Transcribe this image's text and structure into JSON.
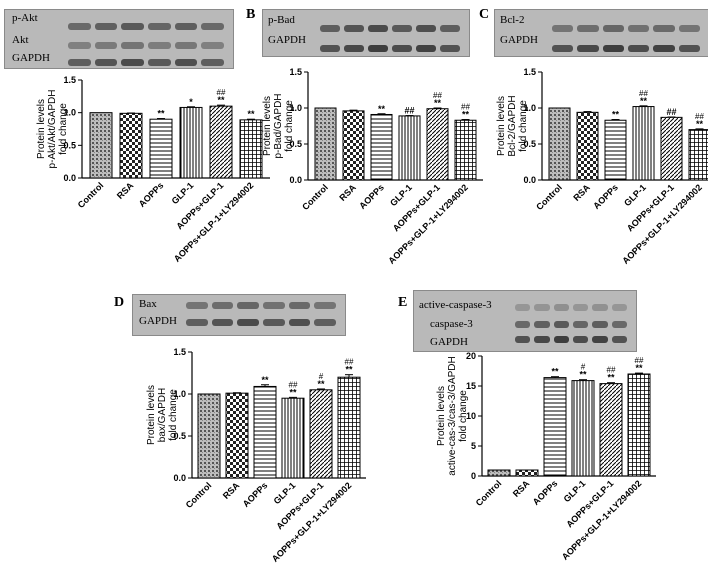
{
  "panels": [
    {
      "letter": "A",
      "blot_labels": [
        "p-Akt",
        "Akt",
        "GAPDH"
      ],
      "chart_data": {
        "type": "bar",
        "categories": [
          "Control",
          "RSA",
          "AOPPs",
          "GLP-1",
          "AOPPs+GLP-1",
          "AOPPs+GLP-1+LY294002"
        ],
        "values": [
          1.0,
          0.99,
          0.9,
          1.08,
          1.1,
          0.89
        ],
        "errors": [
          0.0,
          0.005,
          0.01,
          0.01,
          0.015,
          0.01
        ],
        "ylabel": [
          "Protein levels",
          "p-Akt/Akt/GAPDH",
          "fold change"
        ],
        "ylim": [
          0,
          1.5
        ],
        "yticks": [
          "0.0",
          "0.5",
          "1.0",
          "1.5"
        ],
        "annotations": [
          [
            "",
            ""
          ],
          [
            "",
            ""
          ],
          [
            "",
            "**"
          ],
          [
            "",
            "*"
          ],
          [
            "##",
            "**"
          ],
          [
            "",
            "**"
          ]
        ]
      }
    },
    {
      "letter": "B",
      "blot_labels": [
        "p-Bad",
        "GAPDH"
      ],
      "chart_data": {
        "type": "bar",
        "categories": [
          "Control",
          "RSA",
          "AOPPs",
          "GLP-1",
          "AOPPs+GLP-1",
          "AOPPs+GLP-1+LY294002"
        ],
        "values": [
          1.0,
          0.96,
          0.91,
          0.89,
          0.99,
          0.83
        ],
        "errors": [
          0.0,
          0.01,
          0.01,
          0.005,
          0.01,
          0.01
        ],
        "ylabel": [
          "Protein levels",
          "p-Bad/GAPDH",
          "fold change"
        ],
        "ylim": [
          0,
          1.5
        ],
        "yticks": [
          "0.0",
          "0.5",
          "1.0",
          "1.5"
        ],
        "annotations": [
          [
            "",
            ""
          ],
          [
            "",
            ""
          ],
          [
            "",
            "**"
          ],
          [
            "",
            "##"
          ],
          [
            "##",
            "**"
          ],
          [
            "##",
            "**"
          ]
        ]
      }
    },
    {
      "letter": "C",
      "blot_labels": [
        "Bcl-2",
        "GAPDH"
      ],
      "chart_data": {
        "type": "bar",
        "categories": [
          "Control",
          "RSA",
          "AOPPs",
          "GLP-1",
          "AOPPs+GLP-1",
          "AOPPs+GLP-1+LY294002"
        ],
        "values": [
          1.0,
          0.94,
          0.83,
          1.02,
          0.87,
          0.7
        ],
        "errors": [
          0.0,
          0.01,
          0.01,
          0.01,
          0.005,
          0.01
        ],
        "ylabel": [
          "Protein levels",
          "Bcl-2/GAPDH",
          "fold change"
        ],
        "ylim": [
          0,
          1.5
        ],
        "yticks": [
          "0.0",
          "0.5",
          "1.0",
          "1.5"
        ],
        "annotations": [
          [
            "",
            ""
          ],
          [
            "",
            ""
          ],
          [
            "",
            "**"
          ],
          [
            "##",
            "**"
          ],
          [
            "",
            "##"
          ],
          [
            "##",
            "**"
          ]
        ]
      }
    },
    {
      "letter": "D",
      "blot_labels": [
        "Bax",
        "GAPDH"
      ],
      "chart_data": {
        "type": "bar",
        "categories": [
          "Control",
          "RSA",
          "AOPPs",
          "GLP-1",
          "AOPPs+GLP-1",
          "AOPPs+GLP-1+LY294002"
        ],
        "values": [
          1.0,
          1.01,
          1.09,
          0.95,
          1.05,
          1.2
        ],
        "errors": [
          0.0,
          0.005,
          0.02,
          0.01,
          0.01,
          0.03
        ],
        "ylabel": [
          "Protein levels",
          "bax/GAPDH",
          "fold change"
        ],
        "ylim": [
          0,
          1.5
        ],
        "yticks": [
          "0.0",
          "0.5",
          "1.0",
          "1.5"
        ],
        "annotations": [
          [
            "",
            ""
          ],
          [
            "",
            ""
          ],
          [
            "",
            "**"
          ],
          [
            "##",
            "**"
          ],
          [
            "#",
            "**"
          ],
          [
            "##",
            "**"
          ]
        ]
      }
    },
    {
      "letter": "E",
      "blot_labels": [
        "active-caspase-3",
        "caspase-3",
        "GAPDH"
      ],
      "chart_data": {
        "type": "bar",
        "categories": [
          "Control",
          "RSA",
          "AOPPs",
          "GLP-1",
          "AOPPs+GLP-1",
          "AOPPs+GLP-1+LY294002"
        ],
        "values": [
          1.0,
          1.0,
          16.4,
          15.9,
          15.4,
          17.0
        ],
        "errors": [
          0.0,
          0.0,
          0.15,
          0.15,
          0.15,
          0.15
        ],
        "ylabel": [
          "Protein levels",
          "active-cas-3/cas-3/GAPDH",
          "fold change"
        ],
        "ylim": [
          0,
          20
        ],
        "yticks": [
          "0",
          "5",
          "10",
          "15",
          "20"
        ],
        "annotations": [
          [
            "",
            ""
          ],
          [
            "",
            ""
          ],
          [
            "",
            "**"
          ],
          [
            "#",
            "**"
          ],
          [
            "##",
            "**"
          ],
          [
            "##",
            "**"
          ]
        ]
      }
    }
  ]
}
